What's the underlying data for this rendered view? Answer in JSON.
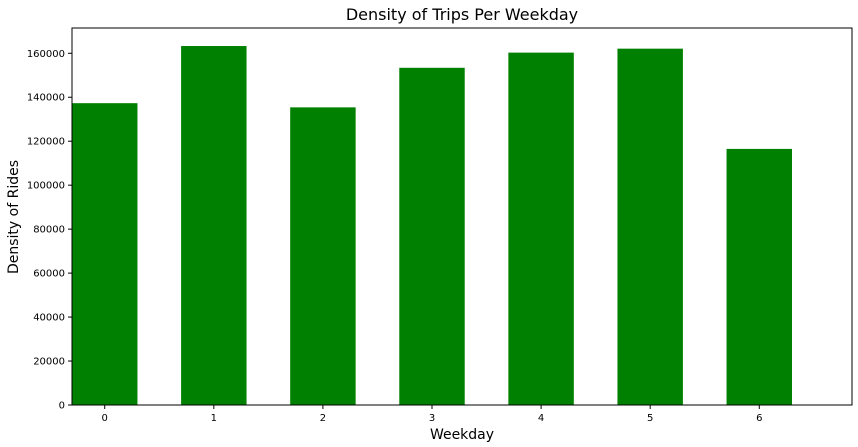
{
  "chart_data": {
    "type": "bar",
    "title": "Density of Trips Per Weekday",
    "xlabel": "Weekday",
    "ylabel": "Density of Rides",
    "categories": [
      "0",
      "1",
      "2",
      "3",
      "4",
      "5",
      "6"
    ],
    "x": [
      0,
      1,
      2,
      3,
      4,
      5,
      6
    ],
    "values": [
      137300,
      163300,
      135400,
      153400,
      160300,
      162100,
      116500
    ],
    "xlim": [
      -0.3,
      6.85
    ],
    "ylim": [
      0,
      171500
    ],
    "yticks": [
      0,
      20000,
      40000,
      60000,
      80000,
      100000,
      120000,
      140000,
      160000
    ],
    "ytick_labels": [
      "0",
      "20000",
      "40000",
      "60000",
      "80000",
      "100000",
      "120000",
      "140000",
      "160000"
    ],
    "xticks": [
      0,
      1,
      2,
      3,
      4,
      5,
      6
    ],
    "xtick_labels": [
      "0",
      "1",
      "2",
      "3",
      "4",
      "5",
      "6"
    ],
    "bar_color": "#008000",
    "grid": false,
    "legend": "none"
  }
}
